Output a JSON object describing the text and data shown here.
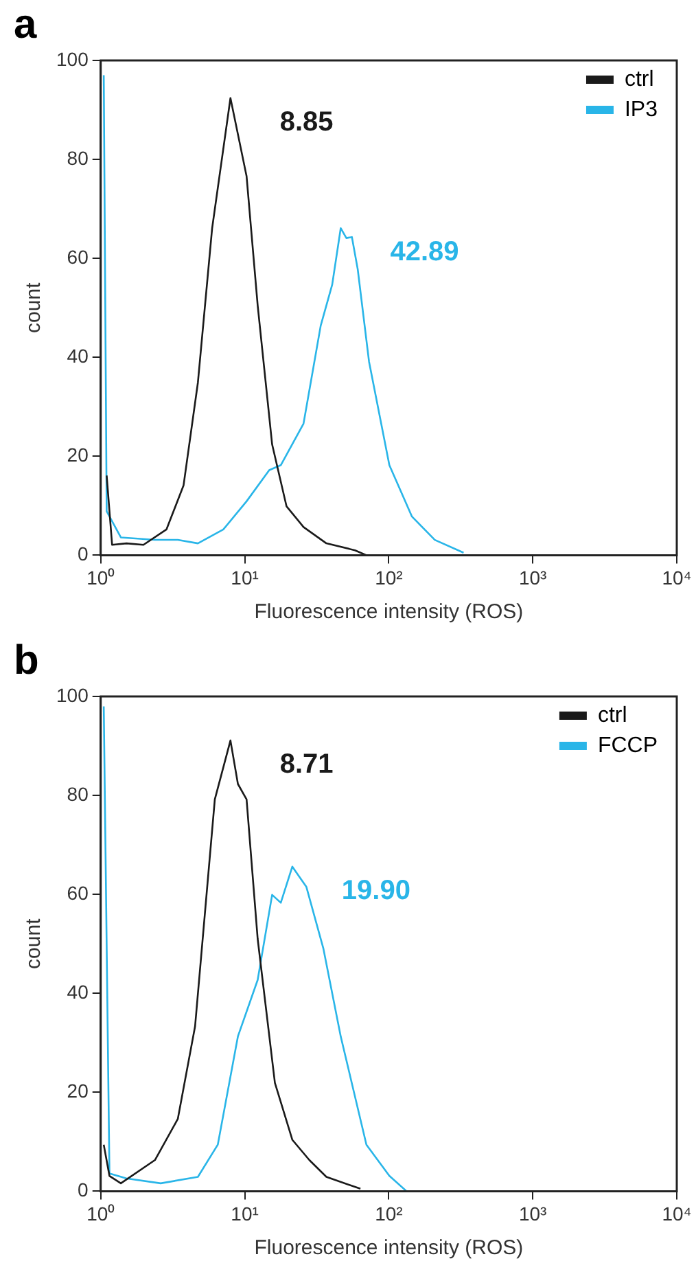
{
  "chart_data": [
    {
      "type": "line",
      "title": "a",
      "xlabel": "Fluorescence intensity (ROS)",
      "ylabel": "count",
      "log": "x",
      "xlim": [
        1,
        10000
      ],
      "xticks": [
        {
          "value": 1,
          "label": "10⁰"
        },
        {
          "value": 10,
          "label": "10¹"
        },
        {
          "value": 100,
          "label": "10²"
        },
        {
          "value": 1000,
          "label": "10³"
        },
        {
          "value": 10000,
          "label": "10⁴"
        }
      ],
      "ylim": [
        0,
        100
      ],
      "yticks": [
        0,
        20,
        40,
        60,
        80,
        100
      ],
      "grid": false,
      "legend": "top right",
      "marker": "none",
      "line_style": "solid",
      "series": [
        {
          "name": "ctrl",
          "color": "#1a1a1a",
          "x": [
            1.1,
            1.2,
            1.51,
            1.98,
            2.86,
            3.76,
            4.73,
            5.94,
            7.96,
            10.3,
            12.3,
            15.5,
            19.5,
            25.6,
            36.9,
            58.3,
            70
          ],
          "values": [
            16.1,
            2.1,
            2.4,
            2.1,
            5.2,
            14.1,
            34.9,
            66.1,
            92.4,
            76.6,
            50.5,
            22.4,
            9.9,
            5.7,
            2.4,
            1,
            0
          ]
        },
        {
          "name": "IP3",
          "color": "#29b5e8",
          "x": [
            1.05,
            1.1,
            1.38,
            2.38,
            3.43,
            4.73,
            7.1,
            10.3,
            14.8,
            17.8,
            25.6,
            33.7,
            40.5,
            46.4,
            50.8,
            55.5,
            60.9,
            73,
            101,
            145,
            209,
            331
          ],
          "values": [
            97,
            8.9,
            3.6,
            3.1,
            3.1,
            2.4,
            5.2,
            10.9,
            17.2,
            18.2,
            26.6,
            46.4,
            54.7,
            66.1,
            64.1,
            64.3,
            57.8,
            39.1,
            18.2,
            7.8,
            3.1,
            0.5
          ]
        }
      ],
      "annotations": [
        "8.85",
        "42.89"
      ]
    },
    {
      "type": "line",
      "title": "b",
      "xlabel": "Fluorescence intensity (ROS)",
      "ylabel": "count",
      "log": "x",
      "xlim": [
        1,
        10000
      ],
      "xticks": [
        {
          "value": 1,
          "label": "10⁰"
        },
        {
          "value": 10,
          "label": "10¹"
        },
        {
          "value": 100,
          "label": "10²"
        },
        {
          "value": 1000,
          "label": "10³"
        },
        {
          "value": 10000,
          "label": "10⁴"
        }
      ],
      "ylim": [
        0,
        100
      ],
      "yticks": [
        0,
        20,
        40,
        60,
        80,
        100
      ],
      "grid": false,
      "legend": "top right",
      "marker": "none",
      "line_style": "solid",
      "series": [
        {
          "name": "ctrl",
          "color": "#1a1a1a",
          "x": [
            1.05,
            1.15,
            1.38,
            2.38,
            3.43,
            4.52,
            6.2,
            7.96,
            8.97,
            10.3,
            12.3,
            16.2,
            21.4,
            28.1,
            36.9,
            63.6
          ],
          "values": [
            9.4,
            3.1,
            1.6,
            6.3,
            14.6,
            33.3,
            79.2,
            91.1,
            82.3,
            79.2,
            51,
            21.9,
            10.4,
            6.3,
            2.9,
            0.5
          ]
        },
        {
          "name": "FCCP",
          "color": "#29b5e8",
          "x": [
            1.05,
            1.15,
            1.51,
            2.61,
            4.73,
            6.5,
            8.97,
            12.3,
            15.5,
            17.8,
            21.4,
            26.8,
            35.2,
            46.4,
            70,
            101,
            133
          ],
          "values": [
            98,
            3.6,
            2.6,
            1.6,
            2.9,
            9.4,
            31.3,
            42.7,
            59.9,
            58.3,
            65.6,
            61.5,
            49,
            31.3,
            9.4,
            3.1,
            0
          ]
        }
      ],
      "annotations": [
        "8.71",
        "19.90"
      ]
    }
  ]
}
